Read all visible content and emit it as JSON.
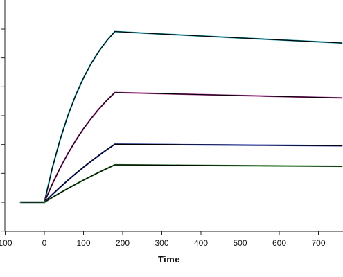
{
  "chart_data": {
    "type": "line",
    "title": "",
    "xlabel": "Time",
    "ylabel": "",
    "xlim": [
      -100,
      760
    ],
    "ylim": [
      -0.05,
      0.35
    ],
    "x_ticks": [
      -100,
      0,
      100,
      200,
      300,
      400,
      500,
      600,
      700
    ],
    "x_tick_labels": [
      "100",
      "0",
      "100",
      "200",
      "300",
      "400",
      "500",
      "600",
      "700"
    ],
    "y_ticks": [
      -0.05,
      0,
      0.05,
      0.1,
      0.15,
      0.2,
      0.25,
      0.3
    ],
    "grid": false,
    "legend": "none",
    "fit_color": "#000000",
    "series": [
      {
        "color": "#1fa6b8",
        "x": [
          -60,
          0,
          20,
          40,
          60,
          80,
          100,
          120,
          140,
          160,
          180,
          250,
          350,
          450,
          550,
          650,
          760
        ],
        "y": [
          0.0,
          0.0,
          0.0586,
          0.1081,
          0.15,
          0.1854,
          0.2154,
          0.2408,
          0.2622,
          0.2803,
          0.2957,
          0.2932,
          0.2897,
          0.2863,
          0.2829,
          0.2796,
          0.2759
        ]
      },
      {
        "color": "#b8379e",
        "x": [
          -60,
          0,
          20,
          40,
          60,
          80,
          100,
          120,
          140,
          160,
          180,
          250,
          350,
          450,
          550,
          650,
          760
        ],
        "y": [
          0.0,
          0.0,
          0.0311,
          0.0591,
          0.0843,
          0.1069,
          0.1273,
          0.1455,
          0.162,
          0.1767,
          0.19,
          0.1889,
          0.1873,
          0.1856,
          0.1841,
          0.1825,
          0.1808
        ]
      },
      {
        "color": "#1a2ea8",
        "x": [
          -60,
          0,
          20,
          40,
          60,
          80,
          100,
          120,
          140,
          160,
          180,
          250,
          350,
          450,
          550,
          650,
          760
        ],
        "y": [
          0.0,
          0.0,
          0.0132,
          0.0259,
          0.038,
          0.0496,
          0.0607,
          0.0713,
          0.0815,
          0.0912,
          0.1005,
          0.1002,
          0.0997,
          0.0993,
          0.0988,
          0.0984,
          0.0979
        ]
      },
      {
        "color": "#2e8b2e",
        "x": [
          -60,
          0,
          20,
          40,
          60,
          80,
          100,
          120,
          140,
          160,
          180,
          250,
          350,
          450,
          550,
          650,
          760
        ],
        "y": [
          0.0,
          0.0,
          0.0082,
          0.0161,
          0.0238,
          0.0312,
          0.0384,
          0.0453,
          0.052,
          0.0585,
          0.0648,
          0.0645,
          0.0641,
          0.0636,
          0.0632,
          0.0628,
          0.0623
        ]
      }
    ]
  }
}
